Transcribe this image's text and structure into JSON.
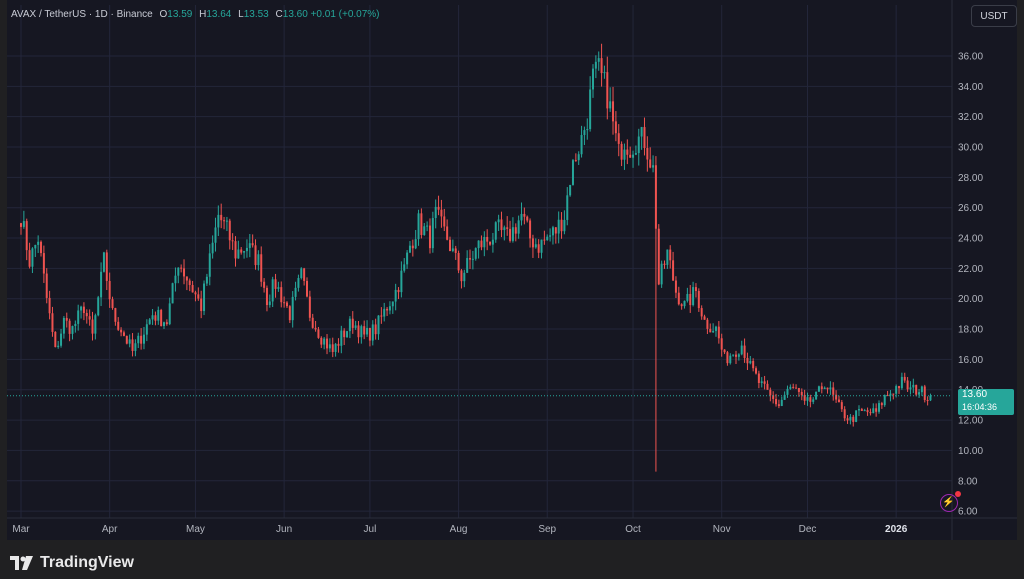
{
  "header": {
    "symbol": "AVAX / TetherUS · 1D · Binance",
    "open_label": "O",
    "open": "13.59",
    "high_label": "H",
    "high": "13.64",
    "low_label": "L",
    "low": "13.53",
    "close_label": "C",
    "close": "13.60",
    "change": "+0.01 (+0.07%)"
  },
  "currency_button": "USDT",
  "price_tag": {
    "price": "13.60",
    "countdown": "16:04:36"
  },
  "brand": "TradingView",
  "colors": {
    "up": "#26a69a",
    "down": "#ef5350",
    "background": "#161722",
    "grid": "#23263a",
    "text": "#b2b5be"
  },
  "chart_data": {
    "type": "candlestick",
    "y_ticks": [
      "36.00",
      "34.00",
      "32.00",
      "30.00",
      "28.00",
      "26.00",
      "24.00",
      "22.00",
      "20.00",
      "18.00",
      "16.00",
      "14.00",
      "12.00",
      "10.00",
      "8.00",
      "6.00"
    ],
    "ylim": [
      6,
      36.5
    ],
    "x_ticks": [
      {
        "label": "Mar",
        "day": 0
      },
      {
        "label": "Apr",
        "day": 31
      },
      {
        "label": "May",
        "day": 61
      },
      {
        "label": "Jun",
        "day": 92
      },
      {
        "label": "Jul",
        "day": 122
      },
      {
        "label": "Aug",
        "day": 153
      },
      {
        "label": "Sep",
        "day": 184
      },
      {
        "label": "Oct",
        "day": 214
      },
      {
        "label": "Nov",
        "day": 245
      },
      {
        "label": "Dec",
        "day": 275
      },
      {
        "label": "2026",
        "day": 306
      }
    ],
    "last_price": 13.6,
    "keypoints": [
      [
        0,
        25.5
      ],
      [
        3,
        22.5
      ],
      [
        6,
        24
      ],
      [
        9,
        20
      ],
      [
        12,
        16.5
      ],
      [
        15,
        18.5
      ],
      [
        18,
        18
      ],
      [
        22,
        19.5
      ],
      [
        25,
        17.5
      ],
      [
        29,
        22.5
      ],
      [
        32,
        19
      ],
      [
        35,
        18
      ],
      [
        39,
        16.5
      ],
      [
        42,
        17.5
      ],
      [
        46,
        19
      ],
      [
        51,
        18.5
      ],
      [
        55,
        22.5
      ],
      [
        59,
        21
      ],
      [
        63,
        19.5
      ],
      [
        66,
        22.5
      ],
      [
        69,
        25.5
      ],
      [
        72,
        24.5
      ],
      [
        75,
        23
      ],
      [
        79,
        23.5
      ],
      [
        83,
        22.5
      ],
      [
        86,
        20
      ],
      [
        89,
        21
      ],
      [
        94,
        19
      ],
      [
        98,
        21.5
      ],
      [
        101,
        19
      ],
      [
        105,
        17.5
      ],
      [
        109,
        16.5
      ],
      [
        112,
        17.5
      ],
      [
        116,
        18.5
      ],
      [
        120,
        17.5
      ],
      [
        124,
        18
      ],
      [
        128,
        19.5
      ],
      [
        131,
        20.5
      ],
      [
        134,
        22
      ],
      [
        136,
        23.5
      ],
      [
        139,
        25
      ],
      [
        143,
        24
      ],
      [
        145,
        25.5
      ],
      [
        149,
        24
      ],
      [
        152,
        22.5
      ],
      [
        154,
        21.5
      ],
      [
        157,
        22.5
      ],
      [
        160,
        23.5
      ],
      [
        164,
        24
      ],
      [
        167,
        24.5
      ],
      [
        170,
        24
      ],
      [
        172,
        24.5
      ],
      [
        175,
        25.5
      ],
      [
        178,
        24
      ],
      [
        181,
        23.5
      ],
      [
        184,
        24
      ],
      [
        187,
        24.5
      ],
      [
        190,
        25.5
      ],
      [
        192,
        28
      ],
      [
        194,
        29.5
      ],
      [
        196,
        30.5
      ],
      [
        198,
        32
      ],
      [
        200,
        34.5
      ],
      [
        202,
        35
      ],
      [
        205,
        33.5
      ],
      [
        207,
        31.5
      ],
      [
        209,
        29.5
      ],
      [
        211,
        30.5
      ],
      [
        213,
        30
      ],
      [
        215,
        30.5
      ],
      [
        218,
        30.5
      ],
      [
        221,
        28.5
      ],
      [
        222,
        25
      ],
      [
        223,
        21
      ],
      [
        226,
        23
      ],
      [
        229,
        20.5
      ],
      [
        232,
        19.5
      ],
      [
        236,
        20.5
      ],
      [
        239,
        18.5
      ],
      [
        243,
        18
      ],
      [
        246,
        16
      ],
      [
        249,
        16.5
      ],
      [
        252,
        17
      ],
      [
        255,
        15.5
      ],
      [
        258,
        14.5
      ],
      [
        262,
        13.5
      ],
      [
        265,
        13
      ],
      [
        268,
        14
      ],
      [
        271,
        14
      ],
      [
        274,
        13
      ],
      [
        278,
        13.5
      ],
      [
        281,
        14.5
      ],
      [
        284,
        13.5
      ],
      [
        287,
        12.5
      ],
      [
        290,
        12
      ],
      [
        293,
        12.5
      ],
      [
        296,
        12.5
      ],
      [
        299,
        12.5
      ],
      [
        302,
        13.5
      ],
      [
        305,
        14
      ],
      [
        308,
        14.5
      ],
      [
        311,
        14
      ],
      [
        314,
        14
      ],
      [
        317,
        13.6
      ],
      [
        318,
        13.6
      ]
    ],
    "wick_outliers": [
      {
        "day": 222,
        "low": 8.6,
        "high": 24.0
      }
    ]
  }
}
